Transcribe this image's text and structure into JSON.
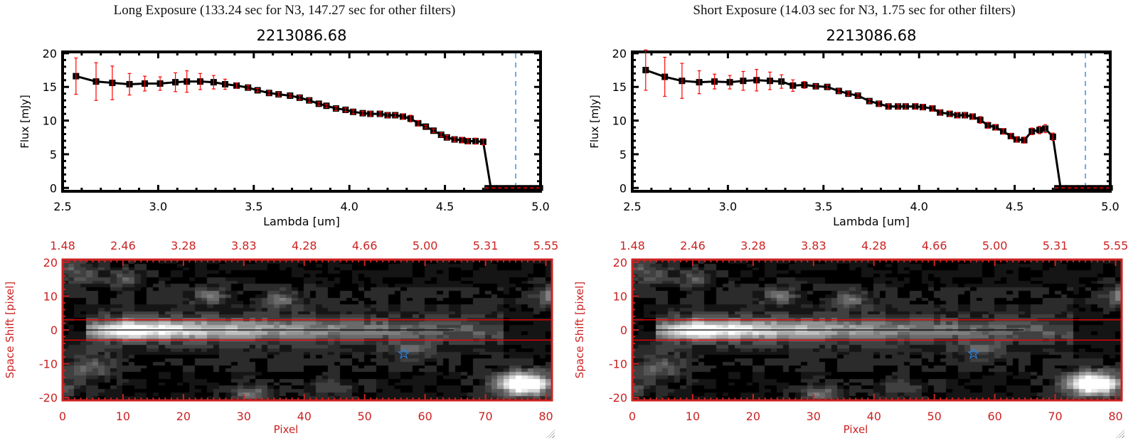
{
  "panels": [
    {
      "title": "Long Exposure (133.24 sec for N3, 147.27 sec for other filters)",
      "object_id": "2213086.68"
    },
    {
      "title": "Short Exposure (14.03 sec for N3, 1.75 sec for other filters)",
      "object_id": "2213086.68"
    }
  ],
  "colors": {
    "points": "#000000",
    "errors": "#ff0000",
    "cutoff_line": "#3a8ee6",
    "image_axes": "#cc2222",
    "aperture": "#ff0000",
    "star": "#2a7fe0"
  },
  "chart_data": [
    {
      "type": "line",
      "title": "2213086.68",
      "xlabel": "Lambda [um]",
      "ylabel": "Flux [mJy]",
      "xlim": [
        2.5,
        5.0
      ],
      "ylim": [
        -0.5,
        20.2
      ],
      "xticks": [
        "2.5",
        "3.0",
        "3.5",
        "4.0",
        "4.5",
        "5.0"
      ],
      "xtick_values": [
        2.5,
        3.0,
        3.5,
        4.0,
        4.5,
        5.0
      ],
      "yticks": [
        "0",
        "5",
        "10",
        "15",
        "20"
      ],
      "ytick_values": [
        0,
        5,
        10,
        15,
        20
      ],
      "x": [
        2.57,
        2.675,
        2.76,
        2.85,
        2.93,
        3.01,
        3.09,
        3.15,
        3.22,
        3.29,
        3.35,
        3.41,
        3.47,
        3.52,
        3.58,
        3.63,
        3.69,
        3.74,
        3.79,
        3.84,
        3.88,
        3.93,
        3.98,
        4.02,
        4.07,
        4.11,
        4.16,
        4.2,
        4.24,
        4.28,
        4.32,
        4.36,
        4.4,
        4.44,
        4.48,
        4.51,
        4.55,
        4.59,
        4.62,
        4.66,
        4.7
      ],
      "y": [
        16.6,
        15.8,
        15.6,
        15.4,
        15.5,
        15.5,
        15.7,
        15.8,
        15.8,
        15.7,
        15.4,
        15.2,
        14.9,
        14.5,
        14.1,
        13.9,
        13.7,
        13.4,
        13.0,
        12.5,
        12.2,
        11.8,
        11.6,
        11.3,
        11.1,
        11.0,
        11.0,
        10.8,
        10.8,
        10.6,
        10.3,
        9.6,
        9.1,
        8.5,
        7.9,
        7.5,
        7.2,
        7.1,
        6.95,
        6.95,
        6.85
      ],
      "yerr": [
        2.7,
        2.8,
        2.5,
        1.6,
        1.1,
        1.0,
        1.4,
        1.6,
        1.2,
        1.0,
        0.75,
        0.4,
        0.3,
        0.25,
        0.3,
        0.3,
        0.25,
        0.3,
        0.3,
        0.25,
        0.25,
        0.3,
        0.3,
        0.3,
        0.3,
        0.35,
        0.35,
        0.35,
        0.3,
        0.4,
        0.5,
        0.4,
        0.2,
        0.25,
        0.3,
        0.3,
        0.35,
        0.4,
        0.4,
        0.45,
        0.45
      ],
      "zero_x": [
        4.74,
        4.8,
        4.86,
        4.92,
        4.98
      ],
      "zero_y": [
        0,
        0,
        0,
        0,
        0
      ],
      "cutoff_lambda": 4.87
    },
    {
      "type": "heatmap",
      "xlabel": "Pixel",
      "ylabel": "Space Shift [pixel]",
      "xlim": [
        0,
        81
      ],
      "ylim": [
        -20.8,
        20.8
      ],
      "xticks": [
        "0",
        "10",
        "20",
        "30",
        "40",
        "50",
        "60",
        "70",
        "80"
      ],
      "xtick_values": [
        0,
        10,
        20,
        30,
        40,
        50,
        60,
        70,
        80
      ],
      "top_ticks": [
        "1.48",
        "2.46",
        "3.28",
        "3.83",
        "4.28",
        "4.66",
        "5.00",
        "5.31",
        "5.55"
      ],
      "yticks": [
        "20",
        "10",
        "0",
        "-10",
        "-20"
      ],
      "ytick_values": [
        20,
        10,
        0,
        -10,
        -20
      ],
      "aperture": [
        -3,
        3
      ],
      "center": 0,
      "star": [
        56,
        -7
      ]
    },
    {
      "type": "line",
      "title": "2213086.68",
      "xlabel": "Lambda [um]",
      "ylabel": "Flux [mJy]",
      "xlim": [
        2.5,
        5.0
      ],
      "ylim": [
        -0.5,
        20.2
      ],
      "xticks": [
        "2.5",
        "3.0",
        "3.5",
        "4.0",
        "4.5",
        "5.0"
      ],
      "xtick_values": [
        2.5,
        3.0,
        3.5,
        4.0,
        4.5,
        5.0
      ],
      "yticks": [
        "0",
        "5",
        "10",
        "15",
        "20"
      ],
      "ytick_values": [
        0,
        5,
        10,
        15,
        20
      ],
      "x": [
        2.57,
        2.67,
        2.76,
        2.85,
        2.93,
        3.01,
        3.08,
        3.15,
        3.22,
        3.28,
        3.34,
        3.4,
        3.46,
        3.52,
        3.58,
        3.63,
        3.68,
        3.74,
        3.79,
        3.84,
        3.89,
        3.93,
        3.98,
        4.02,
        4.07,
        4.11,
        4.16,
        4.2,
        4.24,
        4.28,
        4.32,
        4.36,
        4.4,
        4.44,
        4.48,
        4.51,
        4.55,
        4.59,
        4.63,
        4.66,
        4.7
      ],
      "y": [
        17.5,
        16.5,
        15.9,
        15.7,
        15.8,
        15.7,
        15.9,
        16.0,
        15.9,
        15.8,
        15.2,
        15.3,
        15.1,
        15.0,
        14.4,
        14.0,
        13.7,
        12.9,
        12.5,
        12.1,
        12.1,
        12.1,
        12.1,
        12.0,
        11.8,
        11.2,
        11.0,
        10.8,
        10.8,
        10.6,
        10.1,
        9.3,
        9.0,
        8.4,
        7.7,
        7.2,
        7.1,
        8.4,
        8.6,
        8.8,
        7.6
      ],
      "yerr": [
        3.0,
        2.9,
        2.6,
        1.7,
        1.1,
        1.0,
        1.4,
        1.6,
        1.3,
        1.0,
        0.85,
        0.5,
        0.3,
        0.3,
        0.3,
        0.3,
        0.3,
        0.3,
        0.35,
        0.35,
        0.35,
        0.35,
        0.4,
        0.4,
        0.4,
        0.4,
        0.4,
        0.4,
        0.35,
        0.4,
        0.5,
        0.45,
        0.4,
        0.4,
        0.4,
        0.4,
        0.45,
        0.5,
        0.55,
        0.6,
        0.55
      ],
      "zero_x": [
        4.74,
        4.8,
        4.86,
        4.92,
        4.98
      ],
      "zero_y": [
        0,
        0,
        0,
        0,
        0
      ],
      "cutoff_lambda": 4.87
    },
    {
      "type": "heatmap",
      "xlabel": "Pixel",
      "ylabel": "Space Shift [pixel]",
      "xlim": [
        0,
        81
      ],
      "ylim": [
        -20.8,
        20.8
      ],
      "xticks": [
        "0",
        "10",
        "20",
        "30",
        "40",
        "50",
        "60",
        "70",
        "80"
      ],
      "xtick_values": [
        0,
        10,
        20,
        30,
        40,
        50,
        60,
        70,
        80
      ],
      "top_ticks": [
        "1.48",
        "2.46",
        "3.28",
        "3.83",
        "4.28",
        "4.66",
        "5.00",
        "5.31",
        "5.55"
      ],
      "yticks": [
        "20",
        "10",
        "0",
        "-10",
        "-20"
      ],
      "ytick_values": [
        20,
        10,
        0,
        -10,
        -20
      ],
      "aperture": [
        -3,
        3
      ],
      "center": 0,
      "star": [
        56,
        -7
      ]
    }
  ]
}
